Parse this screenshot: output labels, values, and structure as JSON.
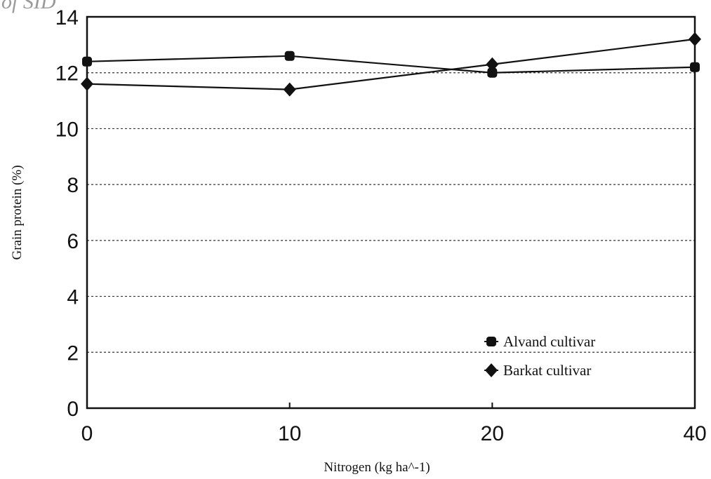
{
  "watermark": "of SID",
  "chart_data": {
    "type": "line",
    "x": [
      0,
      10,
      20,
      40
    ],
    "x_tick_labels": [
      "0",
      "10",
      "20",
      "40"
    ],
    "xlabel": "Nitrogen (kg ha^-1)",
    "ylabel": "Grain protein (%)",
    "ylim": [
      0,
      14
    ],
    "y_ticks": [
      0,
      2,
      4,
      6,
      8,
      10,
      12,
      14
    ],
    "y_tick_labels": [
      "0",
      "2",
      "4",
      "6",
      "8",
      "10",
      "12",
      "14"
    ],
    "grid": "horizontal dashed",
    "legend_position": "bottom-right",
    "series": [
      {
        "name": "Alvand cultivar",
        "marker": "square",
        "values": [
          12.4,
          12.6,
          12.0,
          12.2
        ]
      },
      {
        "name": "Barkat cultivar",
        "marker": "diamond",
        "values": [
          11.6,
          11.4,
          12.3,
          13.2
        ]
      }
    ],
    "colors": {
      "line": "#111111",
      "grid": "#333333",
      "background": "#ffffff"
    }
  }
}
